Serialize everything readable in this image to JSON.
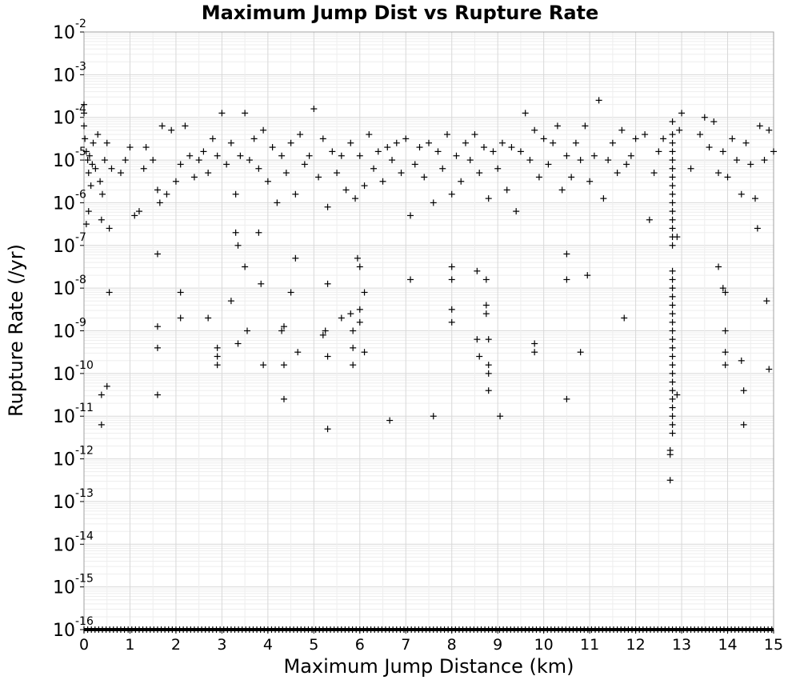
{
  "chart_data": {
    "type": "scatter",
    "title": "Maximum Jump Dist vs Rupture Rate",
    "xlabel": "Maximum Jump Distance (km)",
    "ylabel": "Rupture Rate (/yr)",
    "xlim": [
      0,
      15
    ],
    "ylim_log10": [
      -16,
      -2
    ],
    "y_scale": "log",
    "grid": true,
    "marker": "+",
    "marker_color": "#000000",
    "x_ticks": [
      "0",
      "1",
      "2",
      "3",
      "4",
      "5",
      "6",
      "7",
      "8",
      "9",
      "10",
      "11",
      "12",
      "13",
      "14",
      "15"
    ],
    "y_ticks": [
      {
        "base": "10",
        "exp": "-2"
      },
      {
        "base": "10",
        "exp": "-3"
      },
      {
        "base": "10",
        "exp": "-4"
      },
      {
        "base": "10",
        "exp": "-5"
      },
      {
        "base": "10",
        "exp": "-6"
      },
      {
        "base": "10",
        "exp": "-7"
      },
      {
        "base": "10",
        "exp": "-8"
      },
      {
        "base": "10",
        "exp": "-9"
      },
      {
        "base": "10",
        "exp": "-10"
      },
      {
        "base": "10",
        "exp": "-11"
      },
      {
        "base": "10",
        "exp": "-12"
      },
      {
        "base": "10",
        "exp": "-13"
      },
      {
        "base": "10",
        "exp": "-14"
      },
      {
        "base": "10",
        "exp": "-15"
      },
      {
        "base": "10",
        "exp": "-16"
      }
    ],
    "series": [
      {
        "points": [
          [
            0.0,
            -3.7
          ],
          [
            0.0,
            -3.9
          ],
          [
            0.0,
            -4.2
          ],
          [
            0.02,
            -4.5
          ],
          [
            0.05,
            -4.8
          ],
          [
            0.08,
            -5.0
          ],
          [
            0.1,
            -5.3
          ],
          [
            0.12,
            -4.9
          ],
          [
            0.15,
            -5.6
          ],
          [
            0.18,
            -5.1
          ],
          [
            0.2,
            -4.6
          ],
          [
            0.25,
            -5.2
          ],
          [
            0.3,
            -4.4
          ],
          [
            0.35,
            -5.5
          ],
          [
            0.38,
            -6.4
          ],
          [
            0.4,
            -5.8
          ],
          [
            0.45,
            -5.0
          ],
          [
            0.5,
            -4.6
          ],
          [
            0.55,
            -6.6
          ],
          [
            0.6,
            -5.2
          ],
          [
            0.05,
            -6.5
          ],
          [
            0.1,
            -6.2
          ],
          [
            0.55,
            -8.1
          ],
          [
            0.5,
            -10.3
          ],
          [
            0.38,
            -10.5
          ],
          [
            0.38,
            -11.2
          ],
          [
            0.8,
            -5.3
          ],
          [
            0.9,
            -5.0
          ],
          [
            1.0,
            -4.7
          ],
          [
            1.1,
            -6.3
          ],
          [
            1.2,
            -6.2
          ],
          [
            1.3,
            -5.2
          ],
          [
            1.35,
            -4.7
          ],
          [
            1.5,
            -5.0
          ],
          [
            1.6,
            -5.7
          ],
          [
            1.65,
            -6.0
          ],
          [
            1.7,
            -4.2
          ],
          [
            1.8,
            -5.8
          ],
          [
            1.9,
            -4.3
          ],
          [
            2.0,
            -5.5
          ],
          [
            2.1,
            -5.1
          ],
          [
            2.2,
            -4.2
          ],
          [
            2.3,
            -4.9
          ],
          [
            2.4,
            -5.4
          ],
          [
            2.5,
            -5.0
          ],
          [
            2.6,
            -4.8
          ],
          [
            2.7,
            -5.3
          ],
          [
            2.8,
            -4.5
          ],
          [
            2.9,
            -4.9
          ],
          [
            3.0,
            -3.9
          ],
          [
            3.1,
            -5.1
          ],
          [
            3.2,
            -4.6
          ],
          [
            3.3,
            -5.8
          ],
          [
            3.4,
            -4.9
          ],
          [
            3.5,
            -3.9
          ],
          [
            3.6,
            -5.0
          ],
          [
            3.7,
            -4.5
          ],
          [
            3.8,
            -5.2
          ],
          [
            3.9,
            -4.3
          ],
          [
            4.0,
            -5.5
          ],
          [
            4.1,
            -4.7
          ],
          [
            4.2,
            -6.0
          ],
          [
            4.3,
            -4.9
          ],
          [
            4.4,
            -5.3
          ],
          [
            4.5,
            -4.6
          ],
          [
            4.6,
            -5.8
          ],
          [
            4.7,
            -4.4
          ],
          [
            4.8,
            -5.1
          ],
          [
            4.9,
            -4.9
          ],
          [
            5.0,
            -3.8
          ],
          [
            5.1,
            -5.4
          ],
          [
            5.2,
            -4.5
          ],
          [
            5.3,
            -6.1
          ],
          [
            5.4,
            -4.8
          ],
          [
            5.5,
            -5.3
          ],
          [
            5.6,
            -4.9
          ],
          [
            5.7,
            -5.7
          ],
          [
            5.8,
            -4.6
          ],
          [
            5.9,
            -5.9
          ],
          [
            6.0,
            -4.9
          ],
          [
            6.1,
            -5.6
          ],
          [
            6.2,
            -4.4
          ],
          [
            6.3,
            -5.2
          ],
          [
            6.4,
            -4.8
          ],
          [
            6.5,
            -5.5
          ],
          [
            6.6,
            -4.7
          ],
          [
            6.7,
            -5.0
          ],
          [
            6.8,
            -4.6
          ],
          [
            6.9,
            -5.3
          ],
          [
            7.0,
            -4.5
          ],
          [
            7.1,
            -6.3
          ],
          [
            7.2,
            -5.1
          ],
          [
            7.3,
            -4.7
          ],
          [
            7.4,
            -5.4
          ],
          [
            7.5,
            -4.6
          ],
          [
            7.6,
            -6.0
          ],
          [
            7.7,
            -4.8
          ],
          [
            7.8,
            -5.2
          ],
          [
            7.9,
            -4.4
          ],
          [
            8.0,
            -5.8
          ],
          [
            8.1,
            -4.9
          ],
          [
            8.2,
            -5.5
          ],
          [
            8.3,
            -4.6
          ],
          [
            8.4,
            -5.0
          ],
          [
            8.5,
            -4.4
          ],
          [
            8.6,
            -5.3
          ],
          [
            8.7,
            -4.7
          ],
          [
            8.8,
            -5.9
          ],
          [
            8.9,
            -4.8
          ],
          [
            9.0,
            -5.2
          ],
          [
            9.1,
            -4.6
          ],
          [
            9.2,
            -5.7
          ],
          [
            9.3,
            -4.7
          ],
          [
            9.4,
            -6.2
          ],
          [
            9.5,
            -4.8
          ],
          [
            9.6,
            -3.9
          ],
          [
            9.7,
            -5.0
          ],
          [
            9.8,
            -4.3
          ],
          [
            9.9,
            -5.4
          ],
          [
            10.0,
            -4.5
          ],
          [
            10.1,
            -5.1
          ],
          [
            10.2,
            -4.6
          ],
          [
            10.3,
            -4.2
          ],
          [
            10.4,
            -5.7
          ],
          [
            10.5,
            -4.9
          ],
          [
            10.6,
            -5.4
          ],
          [
            10.7,
            -4.6
          ],
          [
            10.8,
            -5.0
          ],
          [
            10.9,
            -4.2
          ],
          [
            11.0,
            -5.5
          ],
          [
            11.1,
            -4.9
          ],
          [
            11.2,
            -3.6
          ],
          [
            11.3,
            -5.9
          ],
          [
            11.4,
            -5.0
          ],
          [
            11.5,
            -4.6
          ],
          [
            11.6,
            -5.3
          ],
          [
            11.7,
            -4.3
          ],
          [
            11.8,
            -5.1
          ],
          [
            11.9,
            -4.9
          ],
          [
            12.0,
            -4.5
          ],
          [
            12.2,
            -4.4
          ],
          [
            12.3,
            -6.4
          ],
          [
            12.4,
            -5.3
          ],
          [
            12.5,
            -4.8
          ],
          [
            12.6,
            -4.5
          ],
          [
            1.6,
            -7.2
          ],
          [
            1.6,
            -8.9
          ],
          [
            1.6,
            -9.4
          ],
          [
            1.6,
            -10.5
          ],
          [
            2.1,
            -8.1
          ],
          [
            2.1,
            -8.7
          ],
          [
            2.7,
            -8.7
          ],
          [
            2.9,
            -9.4
          ],
          [
            2.9,
            -9.6
          ],
          [
            2.9,
            -9.8
          ],
          [
            3.2,
            -8.3
          ],
          [
            3.3,
            -6.7
          ],
          [
            3.35,
            -7.0
          ],
          [
            3.35,
            -9.3
          ],
          [
            3.5,
            -7.5
          ],
          [
            3.55,
            -9.0
          ],
          [
            3.8,
            -6.7
          ],
          [
            3.85,
            -7.9
          ],
          [
            3.9,
            -9.8
          ],
          [
            4.3,
            -9.0
          ],
          [
            4.35,
            -8.9
          ],
          [
            4.35,
            -9.8
          ],
          [
            4.35,
            -10.6
          ],
          [
            4.5,
            -8.1
          ],
          [
            4.6,
            -7.3
          ],
          [
            4.65,
            -9.5
          ],
          [
            5.2,
            -9.1
          ],
          [
            5.25,
            -9.0
          ],
          [
            5.3,
            -7.9
          ],
          [
            5.3,
            -9.6
          ],
          [
            5.3,
            -11.3
          ],
          [
            5.6,
            -8.7
          ],
          [
            5.8,
            -8.6
          ],
          [
            5.85,
            -9.0
          ],
          [
            5.85,
            -9.4
          ],
          [
            5.85,
            -9.8
          ],
          [
            5.95,
            -7.3
          ],
          [
            6.0,
            -7.5
          ],
          [
            6.0,
            -8.5
          ],
          [
            6.0,
            -8.8
          ],
          [
            6.1,
            -8.1
          ],
          [
            6.1,
            -9.5
          ],
          [
            6.65,
            -11.1
          ],
          [
            7.1,
            -7.8
          ],
          [
            7.6,
            -11.0
          ],
          [
            8.0,
            -7.5
          ],
          [
            8.0,
            -7.8
          ],
          [
            8.0,
            -8.5
          ],
          [
            8.0,
            -8.8
          ],
          [
            8.55,
            -7.6
          ],
          [
            8.55,
            -9.2
          ],
          [
            8.6,
            -9.6
          ],
          [
            8.75,
            -7.8
          ],
          [
            8.75,
            -8.4
          ],
          [
            8.75,
            -8.6
          ],
          [
            8.8,
            -9.2
          ],
          [
            8.8,
            -9.8
          ],
          [
            8.8,
            -10.0
          ],
          [
            8.8,
            -10.4
          ],
          [
            9.05,
            -11.0
          ],
          [
            9.8,
            -9.3
          ],
          [
            9.8,
            -9.5
          ],
          [
            10.5,
            -7.8
          ],
          [
            10.5,
            -7.2
          ],
          [
            10.5,
            -10.6
          ],
          [
            10.8,
            -9.5
          ],
          [
            10.95,
            -7.7
          ],
          [
            11.75,
            -8.7
          ],
          [
            13.8,
            -7.5
          ],
          [
            13.9,
            -8.0
          ],
          [
            13.95,
            -8.1
          ],
          [
            13.95,
            -9.0
          ],
          [
            13.95,
            -9.5
          ],
          [
            13.95,
            -9.8
          ],
          [
            14.3,
            -9.7
          ],
          [
            14.35,
            -10.4
          ],
          [
            14.35,
            -11.2
          ],
          [
            14.85,
            -8.3
          ],
          [
            14.9,
            -9.9
          ],
          [
            14.65,
            -6.6
          ],
          [
            13.0,
            -3.9
          ],
          [
            13.2,
            -5.2
          ],
          [
            13.4,
            -4.4
          ],
          [
            13.5,
            -4.0
          ],
          [
            13.6,
            -4.7
          ],
          [
            13.7,
            -4.1
          ],
          [
            13.8,
            -5.3
          ],
          [
            13.9,
            -4.8
          ],
          [
            14.0,
            -5.4
          ],
          [
            14.1,
            -4.5
          ],
          [
            14.2,
            -5.0
          ],
          [
            14.3,
            -5.8
          ],
          [
            14.4,
            -4.6
          ],
          [
            14.5,
            -5.1
          ],
          [
            14.6,
            -5.9
          ],
          [
            14.7,
            -4.2
          ],
          [
            14.8,
            -5.0
          ],
          [
            14.9,
            -4.3
          ],
          [
            15.0,
            -4.8
          ],
          [
            12.8,
            -4.1
          ],
          [
            12.8,
            -4.4
          ],
          [
            12.8,
            -4.6
          ],
          [
            12.8,
            -4.8
          ],
          [
            12.8,
            -5.0
          ],
          [
            12.8,
            -5.2
          ],
          [
            12.8,
            -5.4
          ],
          [
            12.8,
            -5.6
          ],
          [
            12.8,
            -5.8
          ],
          [
            12.8,
            -6.0
          ],
          [
            12.8,
            -6.2
          ],
          [
            12.8,
            -6.4
          ],
          [
            12.8,
            -6.6
          ],
          [
            12.8,
            -6.8
          ],
          [
            12.8,
            -7.0
          ],
          [
            12.8,
            -7.6
          ],
          [
            12.8,
            -7.8
          ],
          [
            12.8,
            -8.0
          ],
          [
            12.8,
            -8.2
          ],
          [
            12.8,
            -8.4
          ],
          [
            12.8,
            -8.6
          ],
          [
            12.8,
            -8.8
          ],
          [
            12.8,
            -9.0
          ],
          [
            12.8,
            -9.2
          ],
          [
            12.8,
            -9.4
          ],
          [
            12.8,
            -9.6
          ],
          [
            12.8,
            -9.8
          ],
          [
            12.8,
            -10.0
          ],
          [
            12.8,
            -10.2
          ],
          [
            12.8,
            -10.4
          ],
          [
            12.8,
            -10.6
          ],
          [
            12.8,
            -10.8
          ],
          [
            12.8,
            -11.0
          ],
          [
            12.8,
            -11.2
          ],
          [
            12.8,
            -11.4
          ],
          [
            12.75,
            -11.8
          ],
          [
            12.75,
            -11.9
          ],
          [
            12.75,
            -12.5
          ],
          [
            12.9,
            -10.5
          ],
          [
            12.95,
            -4.3
          ],
          [
            12.9,
            -6.8
          ]
        ]
      }
    ],
    "baseline_band": {
      "y_log10": -16,
      "x_range": [
        0,
        15
      ]
    }
  }
}
